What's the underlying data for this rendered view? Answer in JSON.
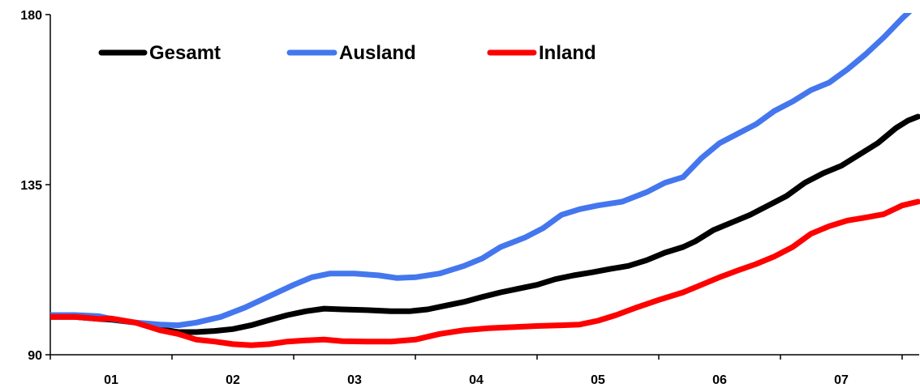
{
  "chart_data": {
    "type": "line",
    "ylim": [
      90,
      180
    ],
    "y_ticks": [
      "90",
      "135",
      "180"
    ],
    "x_ticks": [
      "01",
      "02",
      "03",
      "04",
      "05",
      "06",
      "07"
    ],
    "x_range": [
      2000.5,
      2007.63
    ],
    "grid": false,
    "legend_placement": "top-left",
    "series": [
      {
        "name": "Gesamt",
        "color": "#000000",
        "points": [
          [
            2000.5,
            100
          ],
          [
            2000.7,
            100
          ],
          [
            2000.9,
            99.5
          ],
          [
            2001.0,
            99.3
          ],
          [
            2001.2,
            98.5
          ],
          [
            2001.4,
            96.8
          ],
          [
            2001.55,
            96
          ],
          [
            2001.7,
            96
          ],
          [
            2001.85,
            96.3
          ],
          [
            2002.0,
            96.8
          ],
          [
            2002.15,
            97.8
          ],
          [
            2002.3,
            99.2
          ],
          [
            2002.45,
            100.5
          ],
          [
            2002.6,
            101.5
          ],
          [
            2002.75,
            102.2
          ],
          [
            2002.9,
            102
          ],
          [
            2003.1,
            101.8
          ],
          [
            2003.3,
            101.5
          ],
          [
            2003.45,
            101.5
          ],
          [
            2003.6,
            102
          ],
          [
            2003.75,
            103
          ],
          [
            2003.9,
            104
          ],
          [
            2004.05,
            105.3
          ],
          [
            2004.2,
            106.5
          ],
          [
            2004.35,
            107.5
          ],
          [
            2004.5,
            108.5
          ],
          [
            2004.65,
            110
          ],
          [
            2004.8,
            111
          ],
          [
            2004.95,
            111.8
          ],
          [
            2005.1,
            112.7
          ],
          [
            2005.25,
            113.5
          ],
          [
            2005.4,
            115
          ],
          [
            2005.55,
            117
          ],
          [
            2005.7,
            118.5
          ],
          [
            2005.8,
            120
          ],
          [
            2005.95,
            123
          ],
          [
            2006.1,
            125
          ],
          [
            2006.25,
            127
          ],
          [
            2006.4,
            129.5
          ],
          [
            2006.55,
            132
          ],
          [
            2006.7,
            135.5
          ],
          [
            2006.85,
            138
          ],
          [
            2007.0,
            140
          ],
          [
            2007.15,
            143
          ],
          [
            2007.3,
            146
          ],
          [
            2007.45,
            150
          ],
          [
            2007.55,
            152
          ],
          [
            2007.63,
            153
          ]
        ]
      },
      {
        "name": "Ausland",
        "color": "#4477ee",
        "points": [
          [
            2000.5,
            100.5
          ],
          [
            2000.7,
            100.5
          ],
          [
            2000.9,
            100.2
          ],
          [
            2001.0,
            99.5
          ],
          [
            2001.2,
            98.5
          ],
          [
            2001.4,
            98
          ],
          [
            2001.55,
            97.8
          ],
          [
            2001.7,
            98.5
          ],
          [
            2001.9,
            100
          ],
          [
            2002.1,
            102.5
          ],
          [
            2002.3,
            105.5
          ],
          [
            2002.5,
            108.5
          ],
          [
            2002.65,
            110.5
          ],
          [
            2002.8,
            111.5
          ],
          [
            2003.0,
            111.5
          ],
          [
            2003.2,
            111
          ],
          [
            2003.35,
            110.3
          ],
          [
            2003.5,
            110.5
          ],
          [
            2003.7,
            111.5
          ],
          [
            2003.9,
            113.5
          ],
          [
            2004.05,
            115.5
          ],
          [
            2004.2,
            118.5
          ],
          [
            2004.4,
            121
          ],
          [
            2004.55,
            123.5
          ],
          [
            2004.7,
            127
          ],
          [
            2004.85,
            128.5
          ],
          [
            2005.0,
            129.5
          ],
          [
            2005.2,
            130.5
          ],
          [
            2005.4,
            133
          ],
          [
            2005.55,
            135.5
          ],
          [
            2005.7,
            137
          ],
          [
            2005.85,
            142
          ],
          [
            2006.0,
            146
          ],
          [
            2006.15,
            148.5
          ],
          [
            2006.3,
            151
          ],
          [
            2006.45,
            154.5
          ],
          [
            2006.6,
            157
          ],
          [
            2006.75,
            160
          ],
          [
            2006.9,
            162
          ],
          [
            2007.05,
            165.5
          ],
          [
            2007.2,
            169.5
          ],
          [
            2007.35,
            174
          ],
          [
            2007.5,
            179
          ],
          [
            2007.6,
            182
          ]
        ]
      },
      {
        "name": "Inland",
        "color": "#ff0000",
        "points": [
          [
            2000.5,
            100
          ],
          [
            2000.7,
            100
          ],
          [
            2000.9,
            99.5
          ],
          [
            2001.0,
            99.6
          ],
          [
            2001.2,
            98.5
          ],
          [
            2001.4,
            96.5
          ],
          [
            2001.55,
            95.5
          ],
          [
            2001.7,
            94
          ],
          [
            2001.85,
            93.5
          ],
          [
            2002.0,
            92.8
          ],
          [
            2002.15,
            92.5
          ],
          [
            2002.3,
            92.8
          ],
          [
            2002.45,
            93.5
          ],
          [
            2002.6,
            93.8
          ],
          [
            2002.75,
            94
          ],
          [
            2002.9,
            93.6
          ],
          [
            2003.1,
            93.5
          ],
          [
            2003.3,
            93.5
          ],
          [
            2003.5,
            94
          ],
          [
            2003.7,
            95.5
          ],
          [
            2003.9,
            96.5
          ],
          [
            2004.1,
            97
          ],
          [
            2004.3,
            97.3
          ],
          [
            2004.5,
            97.6
          ],
          [
            2004.7,
            97.8
          ],
          [
            2004.85,
            98
          ],
          [
            2005.0,
            99
          ],
          [
            2005.15,
            100.5
          ],
          [
            2005.3,
            102.3
          ],
          [
            2005.5,
            104.5
          ],
          [
            2005.7,
            106.5
          ],
          [
            2005.85,
            108.5
          ],
          [
            2006.0,
            110.5
          ],
          [
            2006.15,
            112.3
          ],
          [
            2006.3,
            114
          ],
          [
            2006.45,
            116
          ],
          [
            2006.6,
            118.5
          ],
          [
            2006.75,
            122
          ],
          [
            2006.9,
            124
          ],
          [
            2007.05,
            125.5
          ],
          [
            2007.2,
            126.3
          ],
          [
            2007.35,
            127.2
          ],
          [
            2007.5,
            129.5
          ],
          [
            2007.63,
            130.5
          ]
        ]
      }
    ]
  }
}
